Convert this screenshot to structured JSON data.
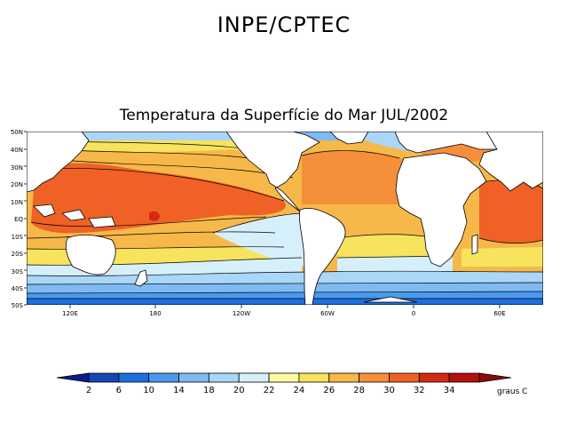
{
  "header": {
    "org": "INPE/CPTEC"
  },
  "map": {
    "title": "Temperatura da Superfície do Mar JUL/2002",
    "lat_labels": [
      "50N",
      "40N",
      "30N",
      "20N",
      "10N",
      "EQ",
      "10S",
      "20S",
      "30S",
      "40S",
      "50S"
    ],
    "lon_labels": [
      "120E",
      "180",
      "120W",
      "60W",
      "0",
      "60E"
    ]
  },
  "legend": {
    "values": [
      "2",
      "6",
      "10",
      "14",
      "18",
      "20",
      "22",
      "24",
      "26",
      "28",
      "30",
      "32",
      "34"
    ],
    "unit": "graus C",
    "colors": [
      "#0b1b8c",
      "#1446b5",
      "#1e6fe0",
      "#4a99ee",
      "#7fbaf2",
      "#aad6f7",
      "#d6f0fb",
      "#fbfba2",
      "#f7e35e",
      "#f7b84a",
      "#f58f3a",
      "#ef6124",
      "#d22a14",
      "#b5100e",
      "#8c0a0a"
    ]
  }
}
